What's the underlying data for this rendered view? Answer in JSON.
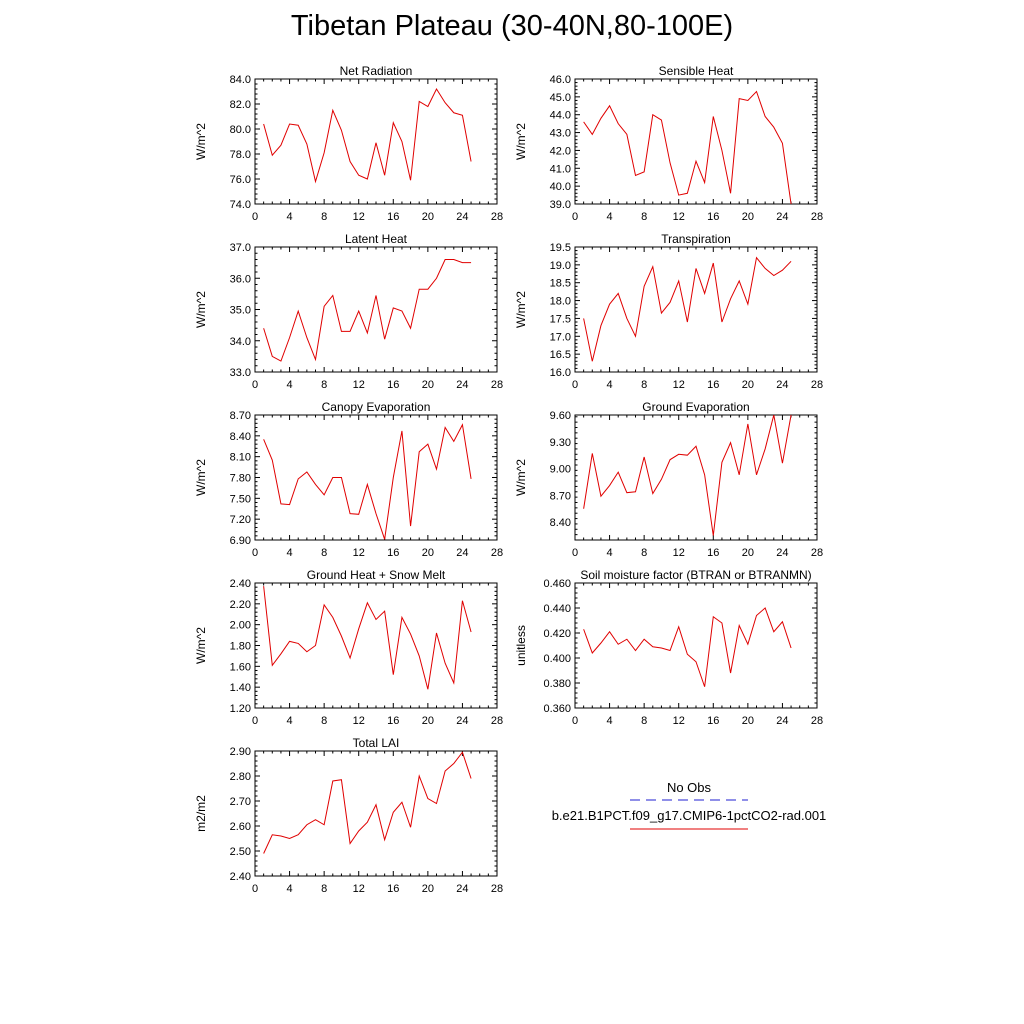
{
  "title": "Tibetan Plateau (30-40N,80-100E)",
  "legend": {
    "obs_label": "No Obs",
    "obs_color": "#1f1fd0",
    "case_label": "b.e21.B1PCT.f09_g17.CMIP6-1pctCO2-rad.001",
    "case_color": "#e00000"
  },
  "chart_data": [
    {
      "type": "line",
      "title": "Net Radiation",
      "ylabel": "W/m^2",
      "xlim": [
        0,
        28
      ],
      "xticks": [
        0,
        4,
        8,
        12,
        16,
        20,
        24,
        28
      ],
      "ylim": [
        74.0,
        84.0
      ],
      "yticks": [
        74.0,
        76.0,
        78.0,
        80.0,
        82.0,
        84.0
      ],
      "ydecimals": 1,
      "series": [
        {
          "color": "#e00000",
          "x": [
            1,
            2,
            3,
            4,
            5,
            6,
            7,
            8,
            9,
            10,
            11,
            12,
            13,
            14,
            15,
            16,
            17,
            18,
            19,
            20,
            21,
            22,
            23,
            24,
            25
          ],
          "values": [
            80.4,
            77.9,
            78.7,
            80.4,
            80.3,
            78.8,
            75.8,
            78.1,
            81.5,
            79.9,
            77.4,
            76.3,
            76.0,
            78.9,
            76.3,
            80.5,
            79.0,
            75.9,
            82.2,
            81.8,
            83.2,
            82.1,
            81.3,
            81.1,
            77.4
          ]
        }
      ]
    },
    {
      "type": "line",
      "title": "Sensible Heat",
      "ylabel": "W/m^2",
      "xlim": [
        0,
        28
      ],
      "xticks": [
        0,
        4,
        8,
        12,
        16,
        20,
        24,
        28
      ],
      "ylim": [
        39.0,
        46.0
      ],
      "yticks": [
        39.0,
        40.0,
        41.0,
        42.0,
        43.0,
        44.0,
        45.0,
        46.0
      ],
      "ydecimals": 1,
      "series": [
        {
          "color": "#e00000",
          "x": [
            1,
            2,
            3,
            4,
            5,
            6,
            7,
            8,
            9,
            10,
            11,
            12,
            13,
            14,
            15,
            16,
            17,
            18,
            19,
            20,
            21,
            22,
            23,
            24,
            25
          ],
          "values": [
            43.6,
            42.9,
            43.8,
            44.5,
            43.5,
            42.9,
            40.6,
            40.8,
            44.0,
            43.7,
            41.3,
            39.5,
            39.6,
            41.4,
            40.2,
            43.9,
            42.0,
            39.6,
            44.9,
            44.8,
            45.3,
            43.9,
            43.3,
            42.4,
            39.0
          ]
        }
      ]
    },
    {
      "type": "line",
      "title": "Latent Heat",
      "ylabel": "W/m^2",
      "xlim": [
        0,
        28
      ],
      "xticks": [
        0,
        4,
        8,
        12,
        16,
        20,
        24,
        28
      ],
      "ylim": [
        33.0,
        37.0
      ],
      "yticks": [
        33.0,
        34.0,
        35.0,
        36.0,
        37.0
      ],
      "ydecimals": 1,
      "series": [
        {
          "color": "#e00000",
          "x": [
            1,
            2,
            3,
            4,
            5,
            6,
            7,
            8,
            9,
            10,
            11,
            12,
            13,
            14,
            15,
            16,
            17,
            18,
            19,
            20,
            21,
            22,
            23,
            24,
            25
          ],
          "values": [
            34.4,
            33.5,
            33.35,
            34.1,
            34.95,
            34.1,
            33.4,
            35.1,
            35.45,
            34.3,
            34.3,
            34.95,
            34.25,
            35.45,
            34.05,
            35.05,
            34.95,
            34.4,
            35.65,
            35.65,
            36.0,
            36.6,
            36.6,
            36.5,
            36.5
          ]
        }
      ]
    },
    {
      "type": "line",
      "title": "Transpiration",
      "ylabel": "W/m^2",
      "xlim": [
        0,
        28
      ],
      "xticks": [
        0,
        4,
        8,
        12,
        16,
        20,
        24,
        28
      ],
      "ylim": [
        16.0,
        19.5
      ],
      "yticks": [
        16.0,
        16.5,
        17.0,
        17.5,
        18.0,
        18.5,
        19.0,
        19.5
      ],
      "ydecimals": 1,
      "series": [
        {
          "color": "#e00000",
          "x": [
            1,
            2,
            3,
            4,
            5,
            6,
            7,
            8,
            9,
            10,
            11,
            12,
            13,
            14,
            15,
            16,
            17,
            18,
            19,
            20,
            21,
            22,
            23,
            24,
            25
          ],
          "values": [
            17.5,
            16.3,
            17.3,
            17.9,
            18.2,
            17.5,
            17.0,
            18.4,
            18.95,
            17.65,
            17.95,
            18.55,
            17.4,
            18.9,
            18.2,
            19.05,
            17.4,
            18.05,
            18.55,
            17.9,
            19.2,
            18.9,
            18.7,
            18.85,
            19.1
          ]
        }
      ]
    },
    {
      "type": "line",
      "title": "Canopy Evaporation",
      "ylabel": "W/m^2",
      "xlim": [
        0,
        28
      ],
      "xticks": [
        0,
        4,
        8,
        12,
        16,
        20,
        24,
        28
      ],
      "ylim": [
        6.9,
        8.7
      ],
      "yticks": [
        6.9,
        7.2,
        7.5,
        7.8,
        8.1,
        8.4,
        8.7
      ],
      "ydecimals": 2,
      "series": [
        {
          "color": "#e00000",
          "x": [
            1,
            2,
            3,
            4,
            5,
            6,
            7,
            8,
            9,
            10,
            11,
            12,
            13,
            14,
            15,
            16,
            17,
            18,
            19,
            20,
            21,
            22,
            23,
            24,
            25
          ],
          "values": [
            8.35,
            8.05,
            7.42,
            7.41,
            7.78,
            7.88,
            7.7,
            7.55,
            7.8,
            7.8,
            7.28,
            7.27,
            7.7,
            7.28,
            6.91,
            7.8,
            8.47,
            7.1,
            8.17,
            8.28,
            7.92,
            8.52,
            8.32,
            8.56,
            7.78
          ]
        }
      ]
    },
    {
      "type": "line",
      "title": "Ground Evaporation",
      "ylabel": "W/m^2",
      "xlim": [
        0,
        28
      ],
      "xticks": [
        0,
        4,
        8,
        12,
        16,
        20,
        24,
        28
      ],
      "ylim": [
        8.2,
        9.6
      ],
      "yticks": [
        8.4,
        8.7,
        9.0,
        9.3,
        9.6
      ],
      "ydecimals": 2,
      "series": [
        {
          "color": "#e00000",
          "x": [
            1,
            2,
            3,
            4,
            5,
            6,
            7,
            8,
            9,
            10,
            11,
            12,
            13,
            14,
            15,
            16,
            17,
            18,
            19,
            20,
            21,
            22,
            23,
            24,
            25
          ],
          "values": [
            8.55,
            9.17,
            8.69,
            8.81,
            8.96,
            8.73,
            8.74,
            9.13,
            8.72,
            8.88,
            9.1,
            9.16,
            9.15,
            9.25,
            8.93,
            8.25,
            9.07,
            9.29,
            8.93,
            9.5,
            8.93,
            9.22,
            9.6,
            9.06,
            9.6
          ]
        }
      ]
    },
    {
      "type": "line",
      "title": "Ground Heat + Snow Melt",
      "ylabel": "W/m^2",
      "xlim": [
        0,
        28
      ],
      "xticks": [
        0,
        4,
        8,
        12,
        16,
        20,
        24,
        28
      ],
      "ylim": [
        1.2,
        2.4
      ],
      "yticks": [
        1.2,
        1.4,
        1.6,
        1.8,
        2.0,
        2.2,
        2.4
      ],
      "ydecimals": 2,
      "series": [
        {
          "color": "#e00000",
          "x": [
            1,
            2,
            3,
            4,
            5,
            6,
            7,
            8,
            9,
            10,
            11,
            12,
            13,
            14,
            15,
            16,
            17,
            18,
            19,
            20,
            21,
            22,
            23,
            24,
            25
          ],
          "values": [
            2.37,
            1.61,
            1.72,
            1.84,
            1.82,
            1.74,
            1.8,
            2.19,
            2.07,
            1.89,
            1.68,
            1.96,
            2.21,
            2.05,
            2.13,
            1.52,
            2.07,
            1.91,
            1.7,
            1.38,
            1.92,
            1.63,
            1.44,
            2.23,
            1.93
          ]
        }
      ]
    },
    {
      "type": "line",
      "title": "Soil moisture factor (BTRAN or BTRANMN)",
      "ylabel": "unitless",
      "xlim": [
        0,
        28
      ],
      "xticks": [
        0,
        4,
        8,
        12,
        16,
        20,
        24,
        28
      ],
      "ylim": [
        0.36,
        0.46
      ],
      "yticks": [
        0.36,
        0.38,
        0.4,
        0.42,
        0.44,
        0.46
      ],
      "ydecimals": 3,
      "series": [
        {
          "color": "#e00000",
          "x": [
            1,
            2,
            3,
            4,
            5,
            6,
            7,
            8,
            9,
            10,
            11,
            12,
            13,
            14,
            15,
            16,
            17,
            18,
            19,
            20,
            21,
            22,
            23,
            24,
            25
          ],
          "values": [
            0.423,
            0.404,
            0.412,
            0.421,
            0.411,
            0.415,
            0.406,
            0.415,
            0.409,
            0.408,
            0.406,
            0.425,
            0.403,
            0.397,
            0.377,
            0.433,
            0.428,
            0.388,
            0.426,
            0.411,
            0.434,
            0.44,
            0.421,
            0.429,
            0.408
          ]
        }
      ]
    },
    {
      "type": "line",
      "title": "Total LAI",
      "ylabel": "m2/m2",
      "xlim": [
        0,
        28
      ],
      "xticks": [
        0,
        4,
        8,
        12,
        16,
        20,
        24,
        28
      ],
      "ylim": [
        2.4,
        2.9
      ],
      "yticks": [
        2.4,
        2.5,
        2.6,
        2.7,
        2.8,
        2.9
      ],
      "ydecimals": 2,
      "series": [
        {
          "color": "#e00000",
          "x": [
            1,
            2,
            3,
            4,
            5,
            6,
            7,
            8,
            9,
            10,
            11,
            12,
            13,
            14,
            15,
            16,
            17,
            18,
            19,
            20,
            21,
            22,
            23,
            24,
            25
          ],
          "values": [
            2.49,
            2.565,
            2.56,
            2.55,
            2.565,
            2.605,
            2.625,
            2.605,
            2.78,
            2.785,
            2.53,
            2.58,
            2.615,
            2.685,
            2.545,
            2.655,
            2.695,
            2.595,
            2.8,
            2.71,
            2.69,
            2.82,
            2.85,
            2.895,
            2.79
          ]
        }
      ]
    }
  ]
}
